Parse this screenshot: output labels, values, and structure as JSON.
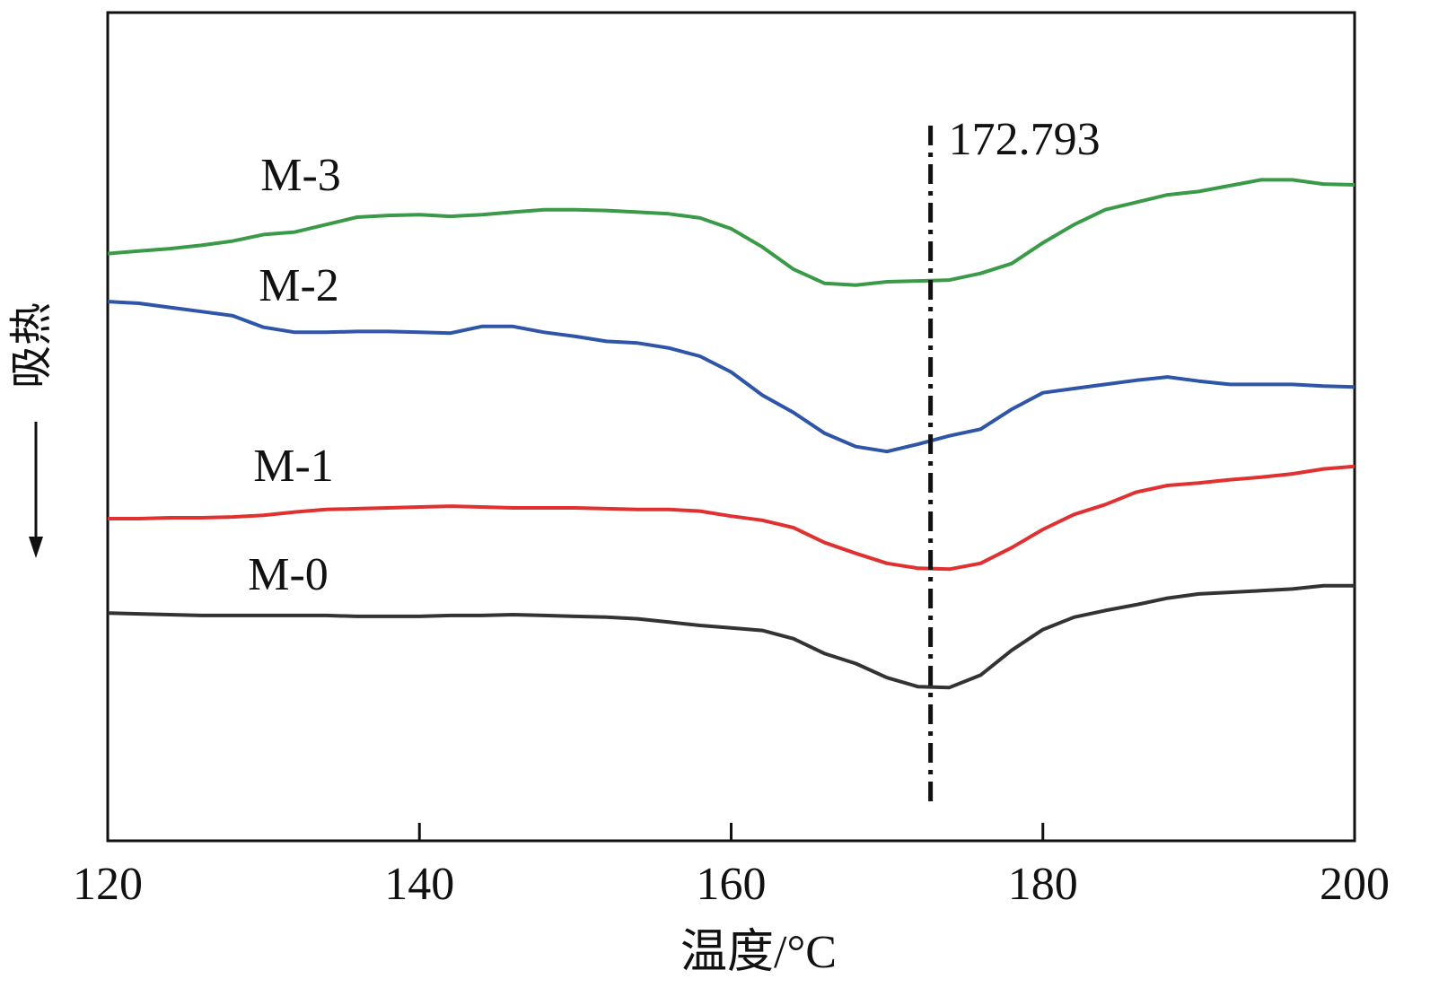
{
  "chart_data": {
    "type": "line",
    "xlabel": "温度/°C",
    "ylabel": "吸热",
    "x": [
      120,
      122,
      124,
      126,
      128,
      130,
      132,
      134,
      136,
      138,
      140,
      142,
      144,
      146,
      148,
      150,
      152,
      154,
      156,
      158,
      160,
      162,
      164,
      166,
      168,
      170,
      172,
      174,
      176,
      178,
      180,
      182,
      184,
      186,
      188,
      190,
      192,
      194,
      196,
      198,
      200
    ],
    "xlim": [
      120,
      200
    ],
    "xticks": [
      120,
      140,
      160,
      180,
      200
    ],
    "ylim": [
      0,
      100
    ],
    "vline": 172.793,
    "series": [
      {
        "name": "M-0",
        "color": "#333333",
        "values": [
          27.5,
          27.4,
          27.3,
          27.2,
          27.2,
          27.2,
          27.2,
          27.2,
          27.1,
          27.1,
          27.1,
          27.2,
          27.2,
          27.3,
          27.2,
          27.1,
          27.0,
          26.8,
          26.4,
          26.0,
          25.7,
          25.4,
          24.4,
          22.6,
          21.4,
          19.7,
          18.6,
          18.5,
          20.0,
          23.0,
          25.5,
          27.0,
          27.8,
          28.5,
          29.3,
          29.8,
          30.0,
          30.2,
          30.4,
          30.8,
          30.8
        ]
      },
      {
        "name": "M-1",
        "color": "#e03030",
        "values": [
          38.9,
          38.9,
          39.0,
          39.0,
          39.1,
          39.3,
          39.7,
          40.0,
          40.1,
          40.2,
          40.3,
          40.4,
          40.3,
          40.2,
          40.2,
          40.2,
          40.1,
          40.0,
          40.0,
          39.8,
          39.2,
          38.7,
          37.8,
          36.0,
          34.7,
          33.5,
          32.9,
          32.8,
          33.5,
          35.4,
          37.6,
          39.4,
          40.6,
          42.1,
          42.9,
          43.2,
          43.6,
          43.9,
          44.3,
          44.9,
          45.2
        ]
      },
      {
        "name": "M-2",
        "color": "#2e55a8",
        "values": [
          65.1,
          64.9,
          64.4,
          63.9,
          63.4,
          62.0,
          61.4,
          61.4,
          61.5,
          61.5,
          61.4,
          61.3,
          62.1,
          62.1,
          61.4,
          60.9,
          60.3,
          60.1,
          59.5,
          58.5,
          56.6,
          53.8,
          51.7,
          49.2,
          47.6,
          47.0,
          47.9,
          48.9,
          49.7,
          52.1,
          54.1,
          54.6,
          55.1,
          55.6,
          56.0,
          55.5,
          55.1,
          55.1,
          55.1,
          54.9,
          54.8
        ]
      },
      {
        "name": "M-3",
        "color": "#3a9a48",
        "values": [
          70.9,
          71.2,
          71.5,
          71.9,
          72.4,
          73.2,
          73.5,
          74.4,
          75.3,
          75.5,
          75.6,
          75.4,
          75.6,
          75.9,
          76.2,
          76.2,
          76.1,
          75.9,
          75.7,
          75.2,
          73.9,
          71.7,
          69.0,
          67.3,
          67.1,
          67.5,
          67.6,
          67.7,
          68.5,
          69.7,
          72.2,
          74.4,
          76.2,
          77.1,
          78.0,
          78.4,
          79.1,
          79.8,
          79.8,
          79.3,
          79.2
        ]
      }
    ]
  }
}
